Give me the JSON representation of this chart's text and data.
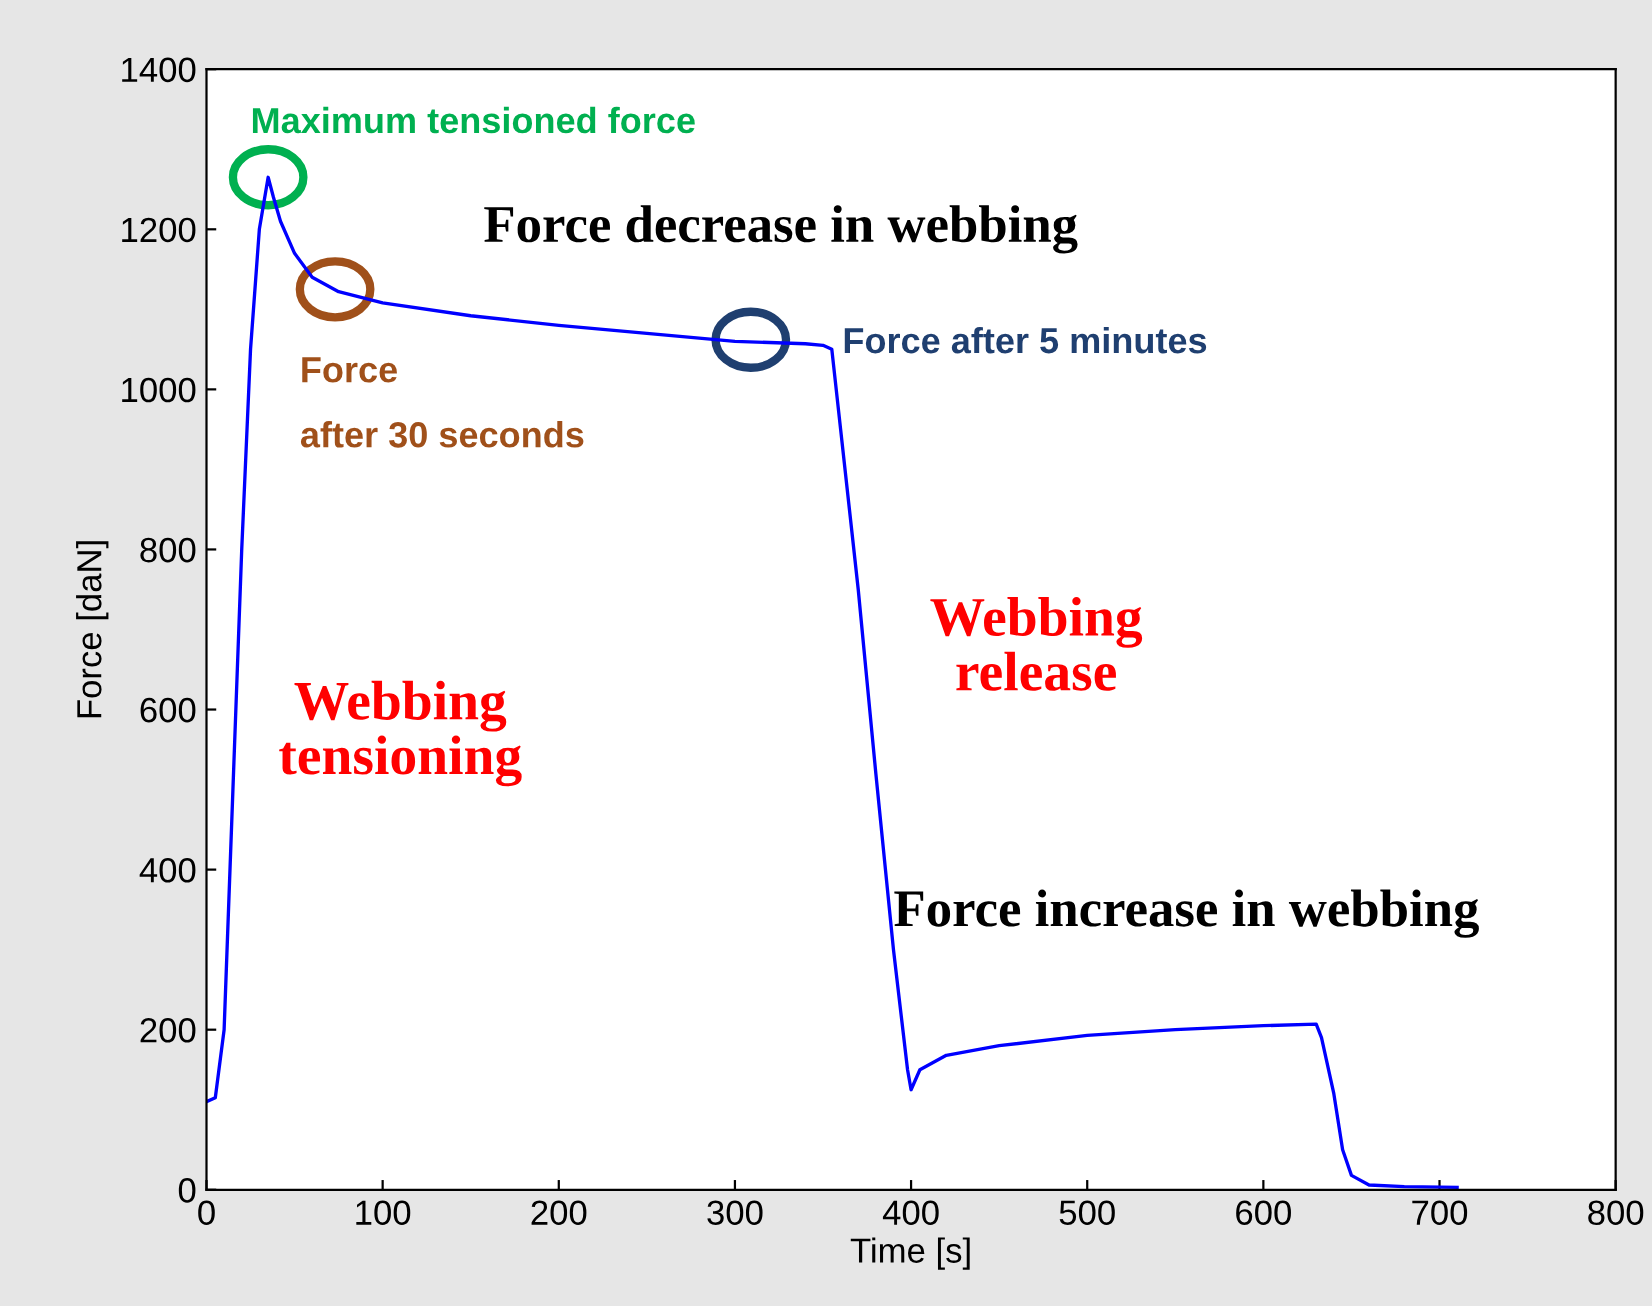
{
  "chart_data": {
    "type": "line",
    "xlabel": "Time [s]",
    "ylabel": "Force [daN]",
    "x": [
      0,
      5,
      10,
      15,
      20,
      25,
      30,
      35,
      38,
      42,
      50,
      60,
      75,
      100,
      150,
      200,
      250,
      300,
      340,
      350,
      355,
      360,
      370,
      380,
      390,
      398,
      400,
      405,
      420,
      450,
      500,
      550,
      600,
      630,
      633,
      640,
      645,
      650,
      660,
      680,
      710
    ],
    "series": [
      {
        "color": "#0000ff",
        "values": [
          110,
          115,
          200,
          500,
          800,
          1050,
          1200,
          1265,
          1240,
          1210,
          1170,
          1140,
          1122,
          1108,
          1092,
          1080,
          1070,
          1060,
          1057,
          1055,
          1050,
          950,
          750,
          520,
          300,
          150,
          125,
          150,
          168,
          180,
          193,
          200,
          205,
          207,
          190,
          120,
          50,
          18,
          6,
          4,
          3
        ]
      }
    ],
    "xlim": [
      0,
      800
    ],
    "ylim": [
      0,
      1400
    ],
    "xticks": [
      0,
      100,
      200,
      300,
      400,
      500,
      600,
      700,
      800
    ],
    "yticks": [
      0,
      200,
      400,
      600,
      800,
      1000,
      1200,
      1400
    ],
    "grid": false,
    "legend": false,
    "marker": "none",
    "line_style": "solid",
    "annotations": [
      {
        "text": "Maximum tensioned force",
        "x": 35,
        "y": 1265
      },
      "Force decrease in webbing",
      {
        "text": "Force\nafter 30 seconds",
        "x": 73,
        "y": 1125
      },
      {
        "text": "Force after 5 minutes",
        "x": 309,
        "y": 1062
      },
      "Webbing\ntensioning",
      "Webbing\nrelease",
      "Force increase in webbing"
    ]
  }
}
